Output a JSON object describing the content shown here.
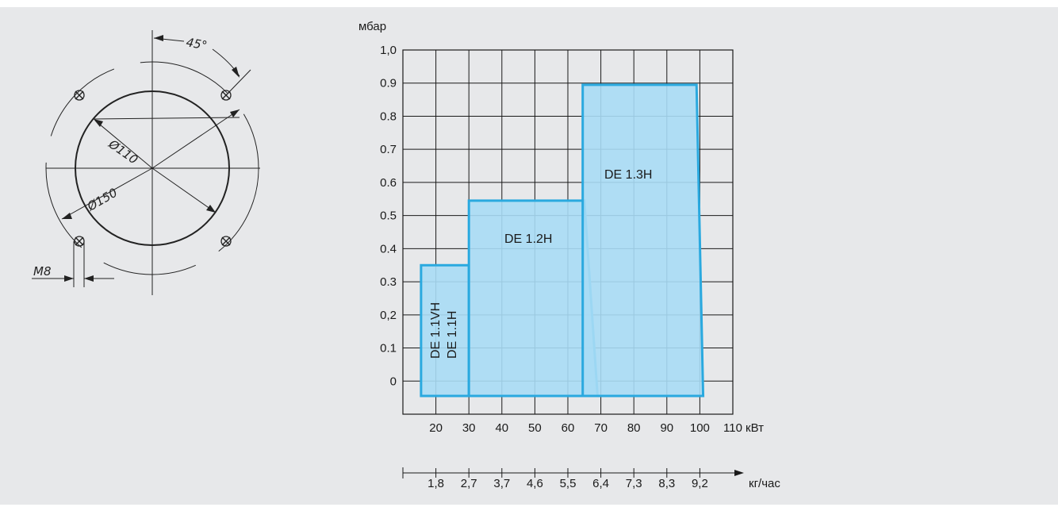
{
  "drawing": {
    "angle_label": "45°",
    "d_inner_label": "Ø110",
    "d_outer_label": "Ø150",
    "thread_label": "M8"
  },
  "chart_data": {
    "type": "area",
    "ylabel": "мбар",
    "xlabel": "кВт",
    "x2label": "кг/час",
    "xlim": [
      10,
      110
    ],
    "ylim": [
      -0.1,
      1.0
    ],
    "x_ticks": [
      "20",
      "30",
      "40",
      "50",
      "60",
      "70",
      "80",
      "90",
      "100",
      "110"
    ],
    "y_ticks": [
      "1,0",
      "0.9",
      "0.8",
      "0.7",
      "0.6",
      "0.5",
      "0.4",
      "0.3",
      "0,2",
      "0.1",
      "0"
    ],
    "x2_ticks": [
      "1,8",
      "2,7",
      "3,7",
      "4,6",
      "5,5",
      "6,4",
      "7,3",
      "8,3",
      "9,2"
    ],
    "grid": true,
    "fill_color": "#a8dcf5",
    "line_color": "#2aa9df",
    "regions": [
      {
        "name": "DE 1.1VH",
        "name2": "DE 1.1H",
        "points": [
          [
            15.5,
            -0.045
          ],
          [
            15.5,
            0.35
          ],
          [
            30,
            0.35
          ],
          [
            30,
            -0.045
          ]
        ]
      },
      {
        "name": "DE 1.2H",
        "points": [
          [
            30,
            -0.045
          ],
          [
            30,
            0.545
          ],
          [
            65,
            0.545
          ],
          [
            69,
            -0.045
          ]
        ]
      },
      {
        "name": "DE 1.3H",
        "points": [
          [
            64.5,
            -0.045
          ],
          [
            64.5,
            0.895
          ],
          [
            99,
            0.895
          ],
          [
            101,
            -0.045
          ]
        ]
      }
    ]
  }
}
